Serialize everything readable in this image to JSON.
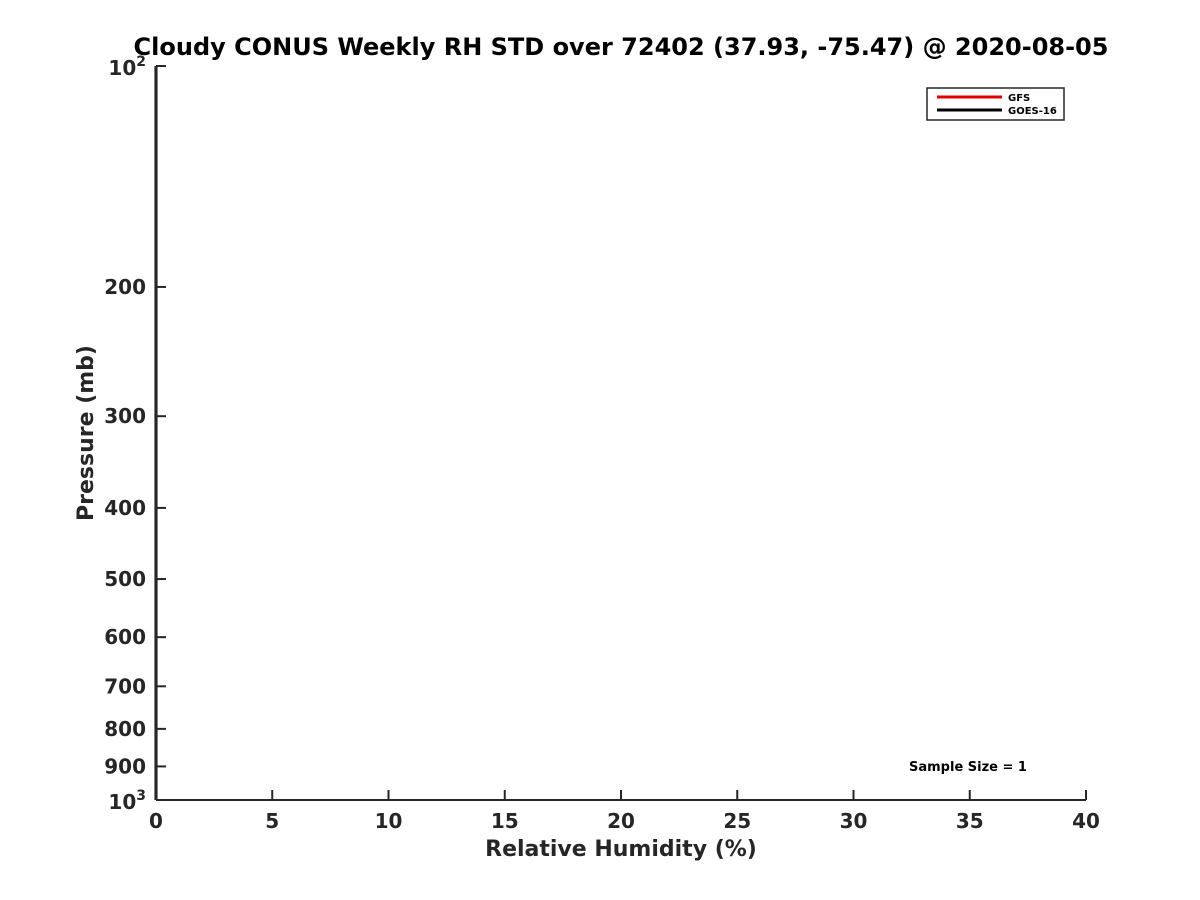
{
  "chart_data": {
    "type": "line",
    "title": "Cloudy CONUS Weekly RH STD over 72402 (37.93, -75.47) @ 2020-08-05",
    "xlabel": "Relative Humidity (%)",
    "ylabel": "Pressure (mb)",
    "xlim": [
      0,
      40
    ],
    "ylim": [
      100,
      1000
    ],
    "y_scale": "log",
    "y_reversed": true,
    "x_ticks": [
      "0",
      "5",
      "10",
      "15",
      "20",
      "25",
      "30",
      "35",
      "40"
    ],
    "y_ticks": [
      {
        "value": 100,
        "base": "10",
        "exp": "2"
      },
      {
        "value": 200,
        "label": "200"
      },
      {
        "value": 300,
        "label": "300"
      },
      {
        "value": 400,
        "label": "400"
      },
      {
        "value": 500,
        "label": "500"
      },
      {
        "value": 600,
        "label": "600"
      },
      {
        "value": 700,
        "label": "700"
      },
      {
        "value": 800,
        "label": "800"
      },
      {
        "value": 900,
        "label": "900"
      },
      {
        "value": 1000,
        "base": "10",
        "exp": "3"
      }
    ],
    "series": [
      {
        "name": "GFS",
        "color": "#e00000",
        "x": [
          0,
          0
        ],
        "y": [
          100,
          1000
        ]
      },
      {
        "name": "GOES-16",
        "color": "#000000",
        "x": [
          0,
          0
        ],
        "y": [
          100,
          1000
        ]
      }
    ],
    "legend_position": "top-right",
    "grid": false,
    "annotation": "Sample Size = 1"
  }
}
